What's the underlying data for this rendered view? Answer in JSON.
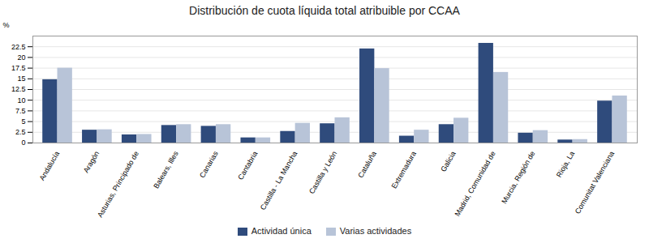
{
  "chart_data": {
    "type": "bar",
    "title": "Distribución de cuota líquida total atribuible por CCAA",
    "categories": [
      "Andalucía",
      "Aragón",
      "Asturias, Principado de",
      "Balears, Illes",
      "Canarias",
      "Cantabria",
      "Castilla - La Mancha",
      "Castilla y León",
      "Cataluña",
      "Extremadura",
      "Galicia",
      "Madrid, Comunidad de",
      "Murcia, Región de",
      "Rioja, La",
      "Comunitat Valenciana"
    ],
    "series": [
      {
        "name": "Actividad única",
        "color": "#2f4b7c",
        "values": [
          14.8,
          3.0,
          1.9,
          4.1,
          3.9,
          1.2,
          2.7,
          4.5,
          22.0,
          1.6,
          4.3,
          23.3,
          2.3,
          0.7,
          9.8
        ]
      },
      {
        "name": "Varias actividades",
        "color": "#b8c4d8",
        "values": [
          17.5,
          3.1,
          2.0,
          4.3,
          4.3,
          1.2,
          4.6,
          5.9,
          17.4,
          3.0,
          5.8,
          16.5,
          2.9,
          0.8,
          11.0
        ]
      }
    ],
    "ylabel": "%",
    "ylim": [
      0,
      25
    ],
    "yticks": [
      0,
      2.5,
      5,
      7.5,
      10,
      12.5,
      15,
      17.5,
      20,
      22.5
    ],
    "grid": true,
    "legend": "bottom"
  }
}
